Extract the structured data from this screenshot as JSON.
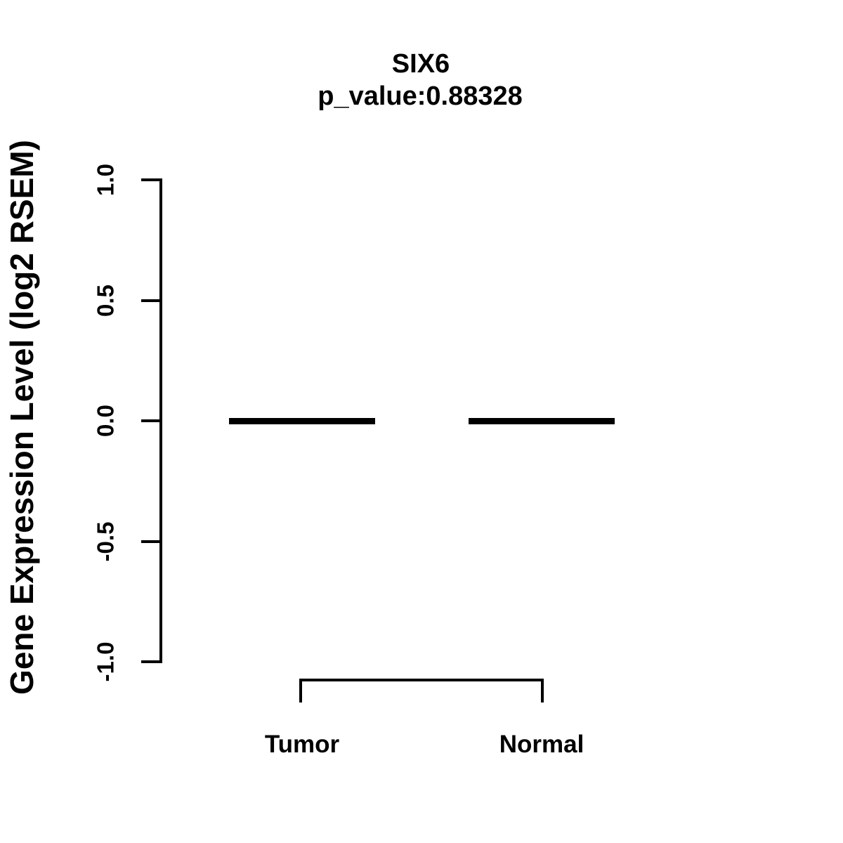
{
  "colors": {
    "foreground": "#000000",
    "background": "#ffffff"
  },
  "chart_data": {
    "type": "boxplot",
    "title": "SIX6",
    "subtitle": "p_value:0.88328",
    "ylabel": "Gene Expression Level (log2 RSEM)",
    "xlabel": "",
    "categories": [
      "Tumor",
      "Normal"
    ],
    "series": [
      {
        "name": "Tumor",
        "median": 0.0,
        "q1": 0.0,
        "q3": 0.0,
        "min": 0.0,
        "max": 0.0
      },
      {
        "name": "Normal",
        "median": 0.0,
        "q1": 0.0,
        "q3": 0.0,
        "min": 0.0,
        "max": 0.0
      }
    ],
    "ylim": [
      -1.0,
      1.0
    ],
    "yticks": {
      "values": [
        1.0,
        0.5,
        0.0,
        -0.5,
        -1.0
      ],
      "labels": [
        "1.0",
        "0.5",
        "0.0",
        "-0.5",
        "-1.0"
      ]
    },
    "grid": false,
    "legend": "none",
    "annotations": {
      "comparison_bracket": {
        "connects": [
          "Tumor",
          "Normal"
        ]
      }
    }
  }
}
